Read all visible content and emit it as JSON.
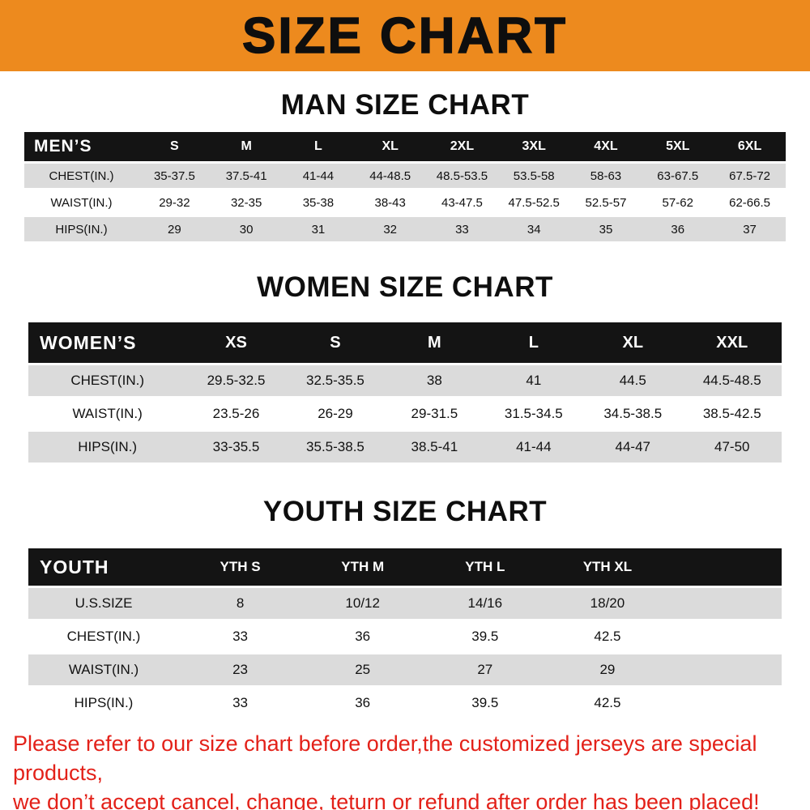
{
  "banner": {
    "title": "SIZE CHART",
    "bg_color": "#ED8A1E",
    "text_color": "#0E0E0E"
  },
  "sections": [
    {
      "heading": "MAN SIZE CHART",
      "table": {
        "title": "MEN’S",
        "sizes": [
          "S",
          "M",
          "L",
          "XL",
          "2XL",
          "3XL",
          "4XL",
          "5XL",
          "6XL"
        ],
        "rows": [
          {
            "label": "CHEST(IN.)",
            "values": [
              "35-37.5",
              "37.5-41",
              "41-44",
              "44-48.5",
              "48.5-53.5",
              "53.5-58",
              "58-63",
              "63-67.5",
              "67.5-72"
            ]
          },
          {
            "label": "WAIST(IN.)",
            "values": [
              "29-32",
              "32-35",
              "35-38",
              "38-43",
              "43-47.5",
              "47.5-52.5",
              "52.5-57",
              "57-62",
              "62-66.5"
            ]
          },
          {
            "label": "HIPS(IN.)",
            "values": [
              "29",
              "30",
              "31",
              "32",
              "33",
              "34",
              "35",
              "36",
              "37"
            ]
          }
        ]
      }
    },
    {
      "heading": "WOMEN SIZE CHART",
      "table": {
        "title": "WOMEN’S",
        "sizes": [
          "XS",
          "S",
          "M",
          "L",
          "XL",
          "XXL"
        ],
        "rows": [
          {
            "label": "CHEST(IN.)",
            "values": [
              "29.5-32.5",
              "32.5-35.5",
              "38",
              "41",
              "44.5",
              "44.5-48.5"
            ]
          },
          {
            "label": "WAIST(IN.)",
            "values": [
              "23.5-26",
              "26-29",
              "29-31.5",
              "31.5-34.5",
              "34.5-38.5",
              "38.5-42.5"
            ]
          },
          {
            "label": "HIPS(IN.)",
            "values": [
              "33-35.5",
              "35.5-38.5",
              "38.5-41",
              "41-44",
              "44-47",
              "47-50"
            ]
          }
        ]
      }
    },
    {
      "heading": "YOUTH SIZE CHART",
      "table": {
        "title": "YOUTH",
        "sizes": [
          "YTH S",
          "YTH M",
          "YTH L",
          "YTH XL"
        ],
        "rows": [
          {
            "label": "U.S.SIZE",
            "values": [
              "8",
              "10/12",
              "14/16",
              "18/20"
            ]
          },
          {
            "label": "CHEST(IN.)",
            "values": [
              "33",
              "36",
              "39.5",
              "42.5"
            ]
          },
          {
            "label": "WAIST(IN.)",
            "values": [
              "23",
              "25",
              "27",
              "29"
            ]
          },
          {
            "label": "HIPS(IN.)",
            "values": [
              "33",
              "36",
              "39.5",
              "42.5"
            ]
          }
        ]
      }
    }
  ],
  "footer": {
    "color": "#E32119",
    "lines": [
      "Please refer to our size chart before order,the customized jerseys are special products,",
      "we don’t accept cancel, change, teturn or refund after order has been placed!"
    ]
  }
}
